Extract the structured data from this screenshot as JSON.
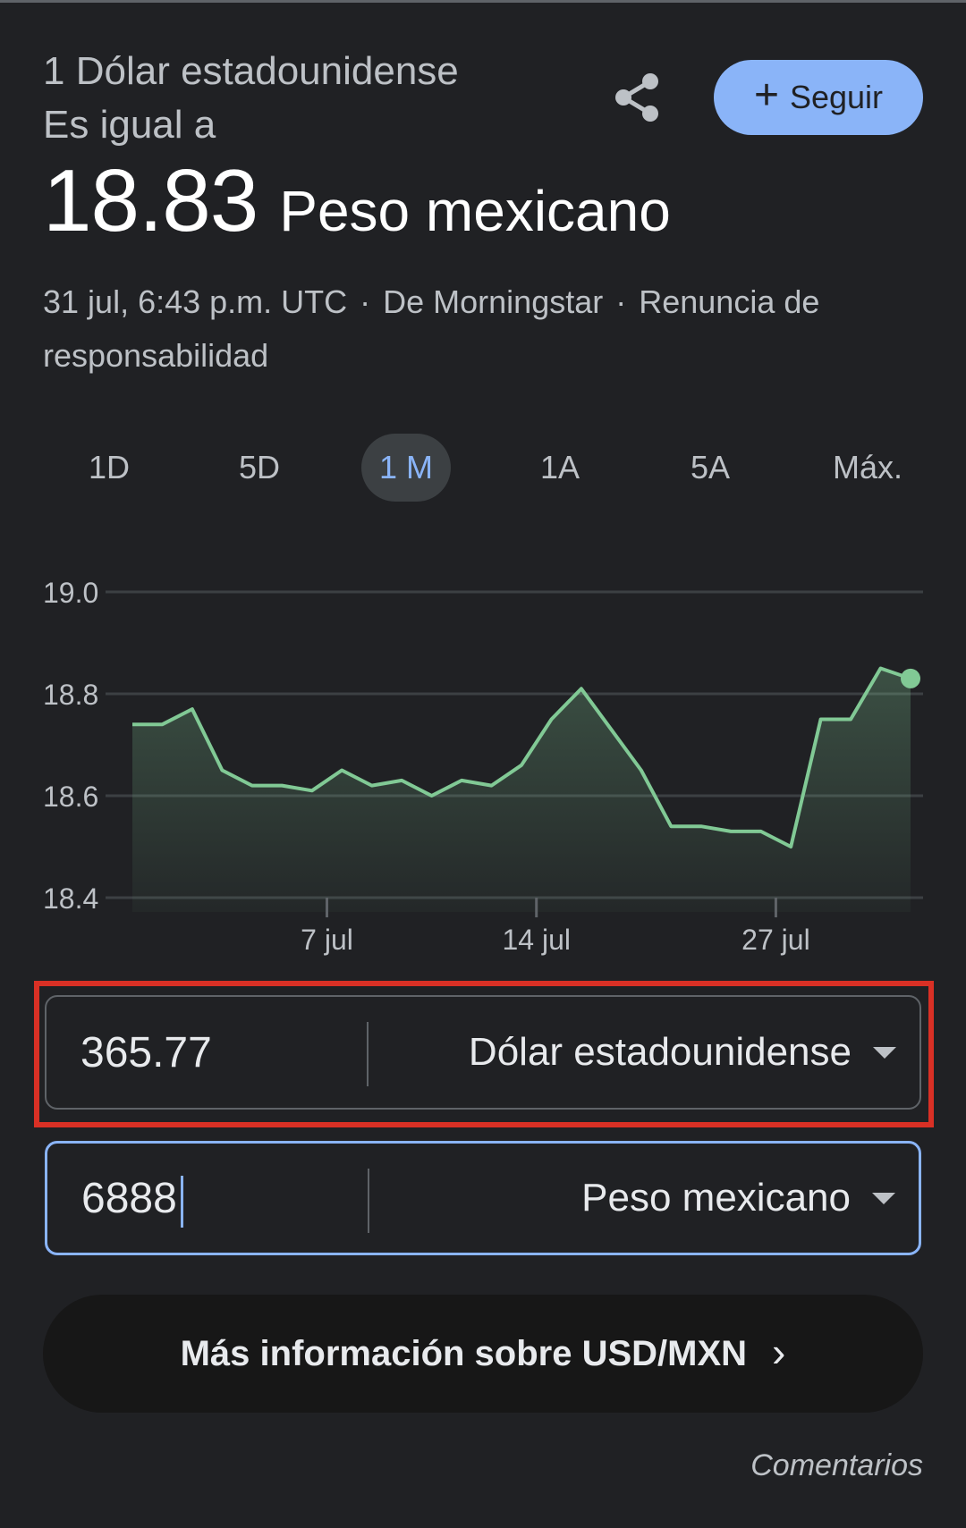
{
  "header": {
    "from_line": "1 Dólar estadounidense",
    "equals_line": "Es igual a",
    "result_value": "18.83",
    "result_currency": "Peso mexicano"
  },
  "actions": {
    "share_icon": "share-icon",
    "follow_label": "Seguir",
    "follow_icon": "plus-icon"
  },
  "meta": {
    "timestamp": "31 jul, 6:43 p.m. UTC",
    "separator": "·",
    "source": "De Morningstar",
    "disclaimer": "Renuncia de responsabilidad"
  },
  "ranges": {
    "tabs": [
      "1D",
      "5D",
      "1 M",
      "1A",
      "5A",
      "Máx."
    ],
    "selected": "1 M"
  },
  "chart_data": {
    "type": "area",
    "title": "",
    "xlabel": "",
    "ylabel": "",
    "x_ticks": [
      "7 jul",
      "14 jul",
      "27 jul"
    ],
    "y_ticks": [
      "19.0",
      "18.8",
      "18.6",
      "18.4"
    ],
    "ylim": [
      18.4,
      19.0
    ],
    "grid": true,
    "line_color": "#81c995",
    "series": [
      {
        "values": [
          18.74,
          18.74,
          18.77,
          18.65,
          18.62,
          18.62,
          18.61,
          18.65,
          18.62,
          18.63,
          18.6,
          18.63,
          18.62,
          18.66,
          18.75,
          18.81,
          18.73,
          18.65,
          18.54,
          18.54,
          18.53,
          18.53,
          18.5,
          18.75,
          18.75,
          18.85,
          18.83
        ]
      }
    ],
    "x_tick_index": [
      6.5,
      13.5,
      21.5
    ]
  },
  "converter": {
    "from_value": "365.77",
    "from_currency": "Dólar estadounidense",
    "to_value": "6888",
    "to_currency": "Peso mexicano"
  },
  "more_info": {
    "label": "Más información sobre USD/MXN",
    "icon": "chevron-right-icon"
  },
  "feedback_label": "Comentarios",
  "colors": {
    "background": "#202124",
    "accent": "#8ab4f8",
    "highlight": "#d93025",
    "chart_line": "#81c995"
  }
}
